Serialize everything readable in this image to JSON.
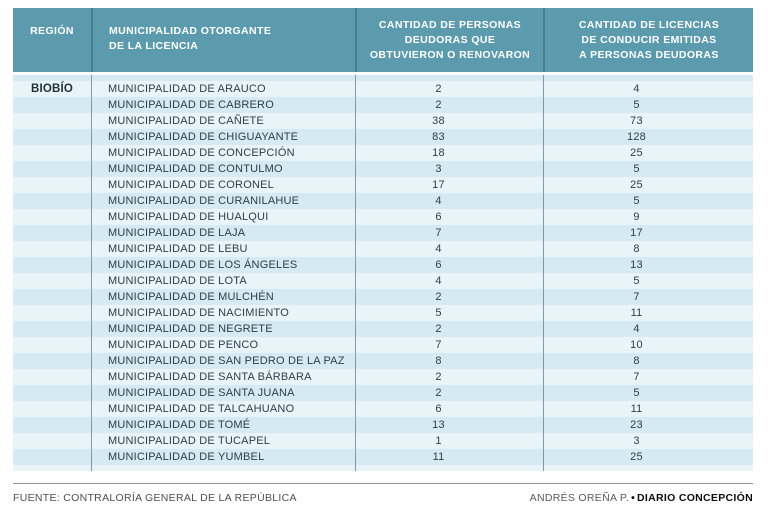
{
  "table": {
    "headers": {
      "region": "REGIÓN",
      "municipality": "MUNICIPALIDAD OTORGANTE\nDE LA LICENCIA",
      "debtors": "CANTIDAD DE PERSONAS\nDEUDORAS QUE\nOBTUVIERON O RENOVARON",
      "licenses": "CANTIDAD DE LICENCIAS\nDE CONDUCIR EMITIDAS\nA PERSONAS DEUDORAS"
    },
    "region": "BIOBÍO",
    "rows": [
      {
        "municipality": "MUNICIPALIDAD DE ARAUCO",
        "debtors": "2",
        "licenses": "4"
      },
      {
        "municipality": "MUNICIPALIDAD DE CABRERO",
        "debtors": "2",
        "licenses": "5"
      },
      {
        "municipality": "MUNICIPALIDAD DE CAÑETE",
        "debtors": "38",
        "licenses": "73"
      },
      {
        "municipality": "MUNICIPALIDAD DE CHIGUAYANTE",
        "debtors": "83",
        "licenses": "128"
      },
      {
        "municipality": "MUNICIPALIDAD DE CONCEPCIÓN",
        "debtors": "18",
        "licenses": "25"
      },
      {
        "municipality": "MUNICIPALIDAD DE CONTULMO",
        "debtors": "3",
        "licenses": "5"
      },
      {
        "municipality": "MUNICIPALIDAD DE CORONEL",
        "debtors": "17",
        "licenses": "25"
      },
      {
        "municipality": "MUNICIPALIDAD DE CURANILAHUE",
        "debtors": "4",
        "licenses": "5"
      },
      {
        "municipality": "MUNICIPALIDAD DE HUALQUI",
        "debtors": "6",
        "licenses": "9"
      },
      {
        "municipality": "MUNICIPALIDAD DE LAJA",
        "debtors": "7",
        "licenses": "17"
      },
      {
        "municipality": "MUNICIPALIDAD DE LEBU",
        "debtors": "4",
        "licenses": "8"
      },
      {
        "municipality": "MUNICIPALIDAD DE LOS ÁNGELES",
        "debtors": "6",
        "licenses": "13"
      },
      {
        "municipality": "MUNICIPALIDAD DE LOTA",
        "debtors": "4",
        "licenses": "5"
      },
      {
        "municipality": "MUNICIPALIDAD DE MULCHÉN",
        "debtors": "2",
        "licenses": "7"
      },
      {
        "municipality": "MUNICIPALIDAD DE NACIMIENTO",
        "debtors": "5",
        "licenses": "11"
      },
      {
        "municipality": "MUNICIPALIDAD DE NEGRETE",
        "debtors": "2",
        "licenses": "4"
      },
      {
        "municipality": "MUNICIPALIDAD DE PENCO",
        "debtors": "7",
        "licenses": "10"
      },
      {
        "municipality": "MUNICIPALIDAD DE SAN PEDRO DE LA PAZ",
        "debtors": "8",
        "licenses": "8"
      },
      {
        "municipality": "MUNICIPALIDAD DE SANTA BÁRBARA",
        "debtors": "2",
        "licenses": "7"
      },
      {
        "municipality": "MUNICIPALIDAD DE SANTA JUANA",
        "debtors": "2",
        "licenses": "5"
      },
      {
        "municipality": "MUNICIPALIDAD DE TALCAHUANO",
        "debtors": "6",
        "licenses": "11"
      },
      {
        "municipality": "MUNICIPALIDAD DE TOMÉ",
        "debtors": "13",
        "licenses": "23"
      },
      {
        "municipality": "MUNICIPALIDAD DE TUCAPEL",
        "debtors": "1",
        "licenses": "3"
      },
      {
        "municipality": "MUNICIPALIDAD DE YUMBEL",
        "debtors": "11",
        "licenses": "25"
      }
    ],
    "colors": {
      "header_bg": "#5c9bad",
      "header_divider": "#467e8e",
      "stripe_pale": "#e9f4f9",
      "stripe_dark": "#d5eaf2",
      "body_divider": "#7f9aa7",
      "text": "#2d3e48"
    }
  },
  "footer": {
    "source": "FUENTE: CONTRALORÍA GENERAL DE LA REPÚBLICA",
    "credit_author": "ANDRÉS OREÑA P.",
    "credit_separator": "•",
    "credit_brand": "DIARIO CONCEPCIÓN"
  }
}
